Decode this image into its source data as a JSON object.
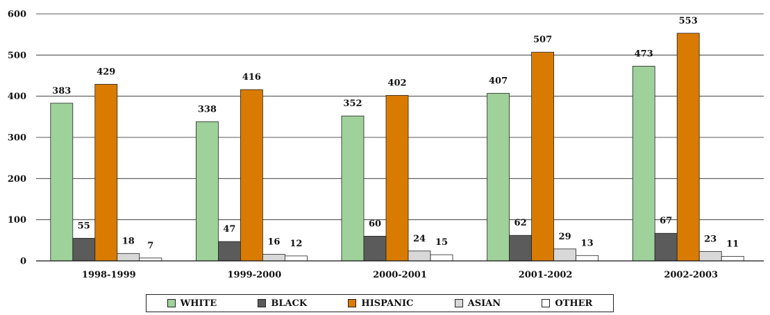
{
  "chart_data": {
    "type": "bar",
    "categories": [
      "1998-1999",
      "1999-2000",
      "2000-2001",
      "2001-2002",
      "2002-2003"
    ],
    "series": [
      {
        "name": "WHITE",
        "color": "#9fd19b",
        "values": [
          383,
          338,
          352,
          407,
          473
        ]
      },
      {
        "name": "BLACK",
        "color": "#5b5b5b",
        "values": [
          55,
          47,
          60,
          62,
          67
        ]
      },
      {
        "name": "HISPANIC",
        "color": "#d97b00",
        "values": [
          429,
          416,
          402,
          507,
          553
        ]
      },
      {
        "name": "ASIAN",
        "color": "#d8d8d8",
        "values": [
          18,
          16,
          24,
          29,
          23
        ]
      },
      {
        "name": "OTHER",
        "color": "#ffffff",
        "values": [
          7,
          12,
          15,
          13,
          11
        ]
      }
    ],
    "yticks": [
      "0",
      "100",
      "200",
      "300",
      "400",
      "500",
      "600"
    ],
    "ylim": [
      0,
      600
    ],
    "grid": true,
    "legend_position": "bottom",
    "title": "",
    "xlabel": "",
    "ylabel": ""
  }
}
